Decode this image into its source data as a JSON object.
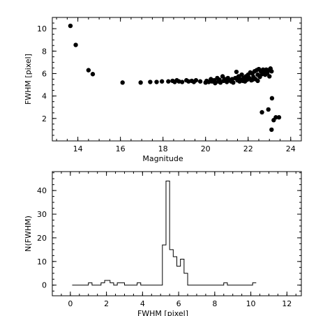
{
  "chart_data": [
    {
      "type": "scatter",
      "title": "",
      "xlabel": "Magnitude",
      "ylabel": "FWHM [pixel]",
      "xlim": [
        12.8,
        24.5
      ],
      "ylim": [
        0.0,
        11.0
      ],
      "xticks": [
        14,
        16,
        18,
        20,
        22,
        24
      ],
      "yticks": [
        2,
        4,
        6,
        8,
        10
      ],
      "grid": false,
      "points": [
        [
          13.65,
          10.25
        ],
        [
          13.9,
          8.55
        ],
        [
          14.5,
          6.3
        ],
        [
          14.7,
          5.95
        ],
        [
          16.1,
          5.2
        ],
        [
          16.95,
          5.2
        ],
        [
          17.4,
          5.25
        ],
        [
          17.7,
          5.25
        ],
        [
          17.95,
          5.3
        ],
        [
          18.25,
          5.3
        ],
        [
          18.45,
          5.35
        ],
        [
          18.55,
          5.25
        ],
        [
          18.65,
          5.4
        ],
        [
          18.75,
          5.3
        ],
        [
          18.9,
          5.25
        ],
        [
          19.1,
          5.4
        ],
        [
          19.2,
          5.3
        ],
        [
          19.35,
          5.35
        ],
        [
          19.45,
          5.25
        ],
        [
          19.55,
          5.4
        ],
        [
          19.75,
          5.3
        ],
        [
          20.0,
          5.2
        ],
        [
          20.05,
          5.35
        ],
        [
          20.15,
          5.25
        ],
        [
          20.25,
          5.5
        ],
        [
          20.3,
          5.3
        ],
        [
          20.4,
          5.4
        ],
        [
          20.45,
          5.15
        ],
        [
          20.55,
          5.6
        ],
        [
          20.6,
          5.3
        ],
        [
          20.65,
          5.45
        ],
        [
          20.7,
          5.2
        ],
        [
          20.8,
          5.75
        ],
        [
          20.85,
          5.35
        ],
        [
          20.9,
          5.5
        ],
        [
          21.0,
          5.25
        ],
        [
          21.05,
          5.6
        ],
        [
          21.1,
          5.4
        ],
        [
          21.2,
          5.3
        ],
        [
          21.25,
          5.5
        ],
        [
          21.3,
          5.2
        ],
        [
          21.4,
          5.6
        ],
        [
          21.45,
          6.15
        ],
        [
          21.5,
          5.4
        ],
        [
          21.55,
          5.75
        ],
        [
          21.6,
          5.3
        ],
        [
          21.65,
          5.5
        ],
        [
          21.7,
          5.9
        ],
        [
          21.75,
          5.35
        ],
        [
          21.8,
          5.6
        ],
        [
          21.85,
          5.3
        ],
        [
          21.9,
          5.75
        ],
        [
          21.95,
          5.45
        ],
        [
          22.0,
          5.9
        ],
        [
          22.05,
          5.6
        ],
        [
          22.1,
          6.1
        ],
        [
          22.15,
          5.4
        ],
        [
          22.2,
          6.0
        ],
        [
          22.25,
          5.7
        ],
        [
          22.3,
          6.2
        ],
        [
          22.35,
          5.5
        ],
        [
          22.4,
          6.3
        ],
        [
          22.45,
          5.9
        ],
        [
          22.5,
          6.4
        ],
        [
          22.55,
          5.7
        ],
        [
          22.6,
          6.2
        ],
        [
          22.65,
          5.95
        ],
        [
          22.7,
          6.35
        ],
        [
          22.75,
          6.1
        ],
        [
          22.8,
          5.9
        ],
        [
          22.85,
          6.35
        ],
        [
          22.9,
          6.05
        ],
        [
          22.95,
          6.3
        ],
        [
          23.0,
          5.75
        ],
        [
          23.05,
          6.45
        ],
        [
          23.1,
          6.2
        ],
        [
          22.45,
          5.35
        ],
        [
          22.2,
          5.45
        ],
        [
          22.65,
          2.55
        ],
        [
          22.95,
          2.8
        ],
        [
          23.12,
          3.8
        ],
        [
          23.2,
          1.85
        ],
        [
          23.3,
          2.1
        ],
        [
          23.45,
          2.1
        ],
        [
          23.1,
          1.0
        ]
      ]
    },
    {
      "type": "histogram",
      "title": "",
      "xlabel": "FWHM [pixel]",
      "ylabel": "N(FWHM)",
      "xlim": [
        -1.0,
        12.8
      ],
      "ylim": [
        -4.5,
        48.0
      ],
      "xticks": [
        0,
        2,
        4,
        6,
        8,
        10,
        12
      ],
      "yticks": [
        0,
        10,
        20,
        30,
        40
      ],
      "grid": false,
      "bin_width": 0.2,
      "bins": [
        [
          0.1,
          0
        ],
        [
          1.0,
          1
        ],
        [
          1.2,
          0
        ],
        [
          1.7,
          1
        ],
        [
          1.9,
          2
        ],
        [
          2.2,
          1
        ],
        [
          2.4,
          0
        ],
        [
          2.6,
          1
        ],
        [
          3.0,
          0
        ],
        [
          3.7,
          1
        ],
        [
          3.9,
          0
        ],
        [
          5.1,
          17
        ],
        [
          5.3,
          44
        ],
        [
          5.5,
          15
        ],
        [
          5.7,
          12
        ],
        [
          5.9,
          8
        ],
        [
          6.1,
          11
        ],
        [
          6.3,
          5
        ],
        [
          6.5,
          0
        ],
        [
          8.5,
          1
        ],
        [
          8.7,
          0
        ],
        [
          10.1,
          1
        ],
        [
          10.3,
          1
        ]
      ]
    }
  ]
}
